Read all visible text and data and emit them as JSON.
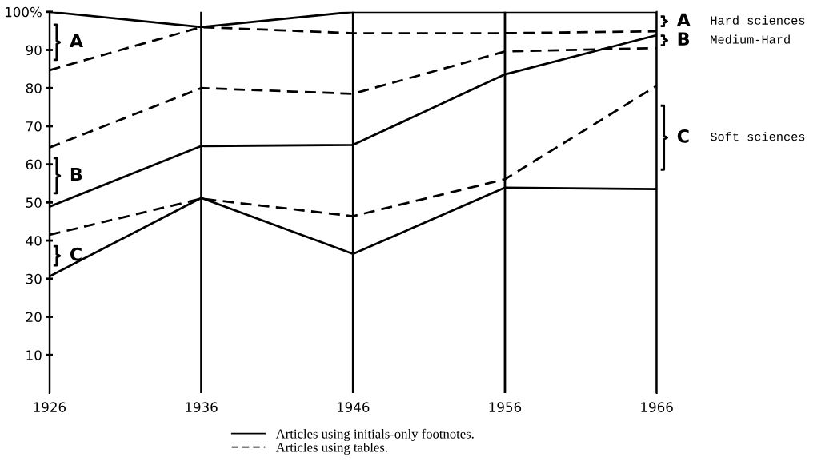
{
  "chart_data": {
    "type": "line",
    "x": [
      1926,
      1936,
      1946,
      1956,
      1966
    ],
    "series": [
      {
        "name": "Articles using initials-only footnotes.",
        "color": "#000000",
        "line_style": "solid",
        "values": [
          100,
          96,
          100,
          100,
          100
        ]
      },
      {
        "name": "Articles using tables.",
        "color": "#000000",
        "line_style": "dashed",
        "values": [
          84.7,
          96,
          94.4,
          94.4,
          94.9
        ]
      },
      {
        "color": "#000000",
        "line_style": "dashed",
        "values": [
          64.4,
          80,
          78.5,
          89.6,
          90.5
        ]
      },
      {
        "color": "#000000",
        "line_style": "solid",
        "values": [
          48.9,
          64.8,
          65.1,
          83.6,
          93.9
        ]
      },
      {
        "color": "#000000",
        "line_style": "dashed",
        "values": [
          41.5,
          51,
          46.4,
          56.1,
          80.6
        ]
      },
      {
        "color": "#000000",
        "line_style": "solid",
        "values": [
          30.6,
          51.2,
          36.5,
          53.9,
          53.5
        ]
      }
    ],
    "xlim": [
      1926,
      1966
    ],
    "xticks": [
      1926,
      1936,
      1946,
      1956,
      1966
    ],
    "ylim": [
      0,
      100
    ],
    "yticks": [
      10,
      20,
      30,
      40,
      50,
      60,
      70,
      80,
      90,
      {
        "value": 100,
        "label": "100%"
      }
    ],
    "grid": "x",
    "legend": "bottom",
    "marker": "none",
    "annotations": [
      "A",
      "B",
      "C",
      "A",
      "Hard sciences",
      "B",
      "Medium-Hard",
      "C",
      "Soft sciences"
    ]
  }
}
